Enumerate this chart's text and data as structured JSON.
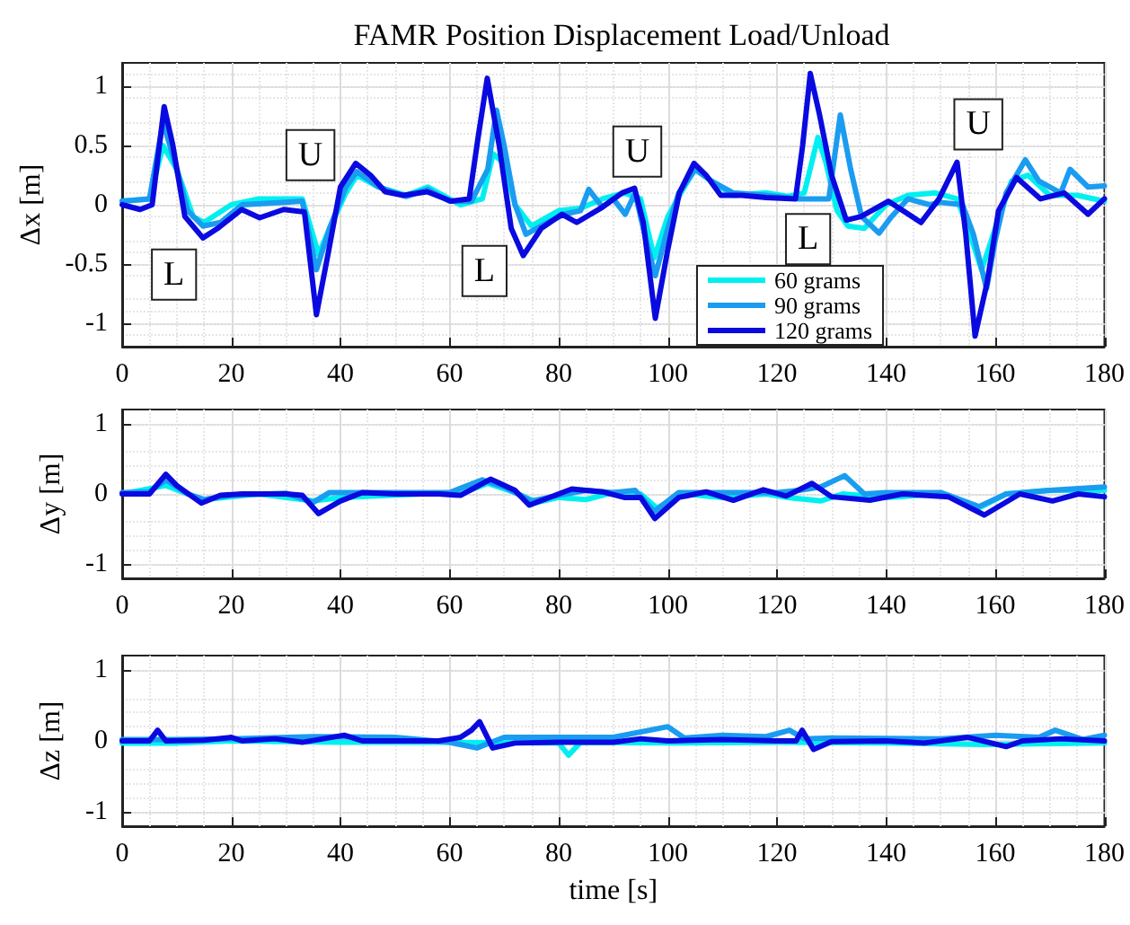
{
  "chart_data": [
    {
      "type": "line",
      "title": "FAMR Position Displacement Load/Unload",
      "ylabel": "Δx [m]",
      "xlim": [
        0,
        180
      ],
      "xticks": [
        0,
        20,
        40,
        60,
        80,
        100,
        120,
        140,
        160,
        180
      ],
      "ylim": [
        -1.2,
        1.2
      ],
      "yticks": [
        -1,
        -0.5,
        0,
        0.5,
        1
      ],
      "grid": true,
      "legend": "bottom right",
      "annotations": [
        {
          "text": "L",
          "x": 9.5,
          "y": -0.59
        },
        {
          "text": "U",
          "x": 34.5,
          "y": 0.42
        },
        {
          "text": "L",
          "x": 66.4,
          "y": -0.56
        },
        {
          "text": "U",
          "x": 94.4,
          "y": 0.45
        },
        {
          "text": "L",
          "x": 125.7,
          "y": -0.29
        },
        {
          "text": "U",
          "x": 156.9,
          "y": 0.68
        }
      ],
      "series": [
        {
          "name": "60 grams",
          "color": "#00f0f0",
          "x": [
            0,
            5,
            7.5,
            10,
            13,
            15,
            20,
            25,
            33,
            36,
            38,
            41,
            43,
            47,
            52,
            56,
            62,
            66,
            68,
            70,
            72,
            75,
            80,
            84,
            88,
            92,
            95,
            97.5,
            100,
            103,
            105,
            108,
            112,
            118,
            122,
            125,
            127.5,
            129,
            131,
            133,
            136,
            140,
            144,
            149,
            153,
            155,
            157.5,
            160,
            163,
            166,
            170,
            175,
            180
          ],
          "values": [
            0.03,
            0.05,
            0.5,
            0.3,
            -0.1,
            -0.15,
            0,
            0.05,
            0.05,
            -0.42,
            -0.2,
            0.1,
            0.25,
            0.15,
            0.08,
            0.15,
            0,
            0.05,
            0.43,
            0.35,
            0,
            -0.18,
            -0.05,
            -0.03,
            0.05,
            0.1,
            0.05,
            -0.45,
            -0.1,
            0.15,
            0.3,
            0.2,
            0.08,
            0.1,
            0.07,
            0.1,
            0.57,
            0.35,
            -0.05,
            -0.18,
            -0.2,
            0,
            0.08,
            0.1,
            0.05,
            -0.2,
            -0.55,
            -0.2,
            0.2,
            0.25,
            0.08,
            0.08,
            0.03
          ]
        },
        {
          "name": "90 grams",
          "color": "#1a9cf0",
          "x": [
            0,
            5,
            7.5,
            10,
            12,
            14.8,
            18,
            22,
            30,
            33,
            35.6,
            38,
            41,
            43,
            47,
            52,
            56,
            60,
            64,
            67,
            68.6,
            70,
            72,
            74,
            78,
            81,
            84,
            85.5,
            88,
            90,
            92.2,
            94,
            96,
            97.7,
            100,
            102,
            105,
            108,
            112,
            118,
            124,
            127,
            129.5,
            131.6,
            133.5,
            135.5,
            138.7,
            141,
            144,
            148,
            150,
            154,
            156,
            158.4,
            160,
            162,
            165.5,
            168,
            172,
            173.7,
            177,
            180
          ],
          "values": [
            0.03,
            0.05,
            0.7,
            0.3,
            -0.05,
            -0.18,
            -0.15,
            0,
            0.02,
            0.03,
            -0.55,
            -0.2,
            0.15,
            0.28,
            0.15,
            0.07,
            0.13,
            0.03,
            0.03,
            0.3,
            0.8,
            0.5,
            0,
            -0.25,
            -0.15,
            -0.08,
            -0.05,
            0.13,
            -0.02,
            0.05,
            -0.08,
            0.1,
            -0.3,
            -0.6,
            -0.2,
            0.1,
            0.3,
            0.2,
            0.1,
            0.08,
            0.05,
            0.05,
            0.05,
            0.76,
            0.3,
            -0.1,
            -0.24,
            -0.1,
            0.05,
            0,
            0.02,
            0,
            -0.25,
            -0.71,
            -0.3,
            0.1,
            0.38,
            0.2,
            0.1,
            0.3,
            0.15,
            0.16
          ]
        },
        {
          "name": "120 grams",
          "color": "#0a0ae0",
          "x": [
            0,
            3.3,
            5.5,
            7.7,
            9.3,
            11.5,
            14.8,
            17.5,
            21.9,
            25.2,
            29.6,
            33.4,
            35.6,
            37.8,
            40,
            42.8,
            45.5,
            48.2,
            51.5,
            55.9,
            60.3,
            63.6,
            65.2,
            66.9,
            69.1,
            71.3,
            73.5,
            76.8,
            80.6,
            83.3,
            87.7,
            91.6,
            93.9,
            95.5,
            97.7,
            99.9,
            102.1,
            104.8,
            107,
            109.7,
            113.6,
            118,
            123.4,
            124.7,
            126.1,
            127.8,
            130,
            132.7,
            135.4,
            140.4,
            146.4,
            149.7,
            153,
            154.6,
            156.3,
            158.5,
            160.6,
            163.9,
            168.3,
            172.6,
            177,
            180
          ],
          "values": [
            0,
            -0.04,
            0,
            0.83,
            0.5,
            -0.1,
            -0.28,
            -0.2,
            -0.04,
            -0.11,
            -0.04,
            -0.06,
            -0.93,
            -0.4,
            0.15,
            0.35,
            0.25,
            0.11,
            0.08,
            0.11,
            0.03,
            0.05,
            0.56,
            1.07,
            0.5,
            -0.2,
            -0.43,
            -0.2,
            -0.08,
            -0.15,
            -0.03,
            0.1,
            0.14,
            -0.15,
            -0.96,
            -0.4,
            0.1,
            0.35,
            0.25,
            0.08,
            0.08,
            0.06,
            0.05,
            0.5,
            1.11,
            0.76,
            0.25,
            -0.13,
            -0.1,
            0.03,
            -0.15,
            0.05,
            0.36,
            -0.25,
            -1.11,
            -0.66,
            -0.05,
            0.23,
            0.05,
            0.1,
            -0.08,
            0.05
          ]
        }
      ]
    },
    {
      "type": "line",
      "ylabel": "Δy [m]",
      "xlim": [
        0,
        180
      ],
      "xticks": [
        0,
        20,
        40,
        60,
        80,
        100,
        120,
        140,
        160,
        180
      ],
      "ylim": [
        -1.2,
        1.2
      ],
      "yticks": [
        -1,
        0,
        1
      ],
      "grid": true,
      "series": [
        {
          "color": "#00f0f0",
          "x": [
            0,
            8,
            12,
            15,
            25,
            35,
            40,
            55,
            62,
            67,
            72,
            76,
            80,
            85,
            90,
            95,
            98,
            103,
            110,
            118,
            122,
            128,
            132,
            140,
            150,
            157,
            162,
            170,
            180
          ],
          "values": [
            0,
            0.12,
            0,
            -0.08,
            0,
            -0.1,
            -0.05,
            0,
            0,
            0.15,
            0.02,
            -0.12,
            -0.05,
            -0.08,
            0.02,
            0,
            -0.2,
            0,
            -0.05,
            0,
            -0.05,
            -0.1,
            0,
            -0.05,
            0,
            -0.2,
            0,
            0.05,
            0.05
          ]
        },
        {
          "color": "#1a9cf0",
          "x": [
            0,
            5,
            8,
            12,
            15,
            20,
            30,
            35,
            38,
            45,
            55,
            60,
            66,
            70,
            75,
            80,
            85,
            90,
            94,
            97.5,
            102,
            110,
            120,
            124,
            128,
            132.4,
            136,
            140,
            150,
            157,
            162,
            170,
            180
          ],
          "values": [
            0.02,
            0.03,
            0.2,
            0,
            -0.08,
            -0.02,
            0.01,
            -0.12,
            0.02,
            0.02,
            0.02,
            0.02,
            0.2,
            0.1,
            -0.1,
            -0.02,
            0.05,
            0.02,
            0.05,
            -0.25,
            0.02,
            0.02,
            0.02,
            0.05,
            0.1,
            0.26,
            0,
            0.02,
            0.02,
            -0.18,
            0,
            0.05,
            0.1
          ]
        },
        {
          "color": "#0a0ae0",
          "x": [
            0,
            5,
            8,
            10,
            14.5,
            18,
            22,
            30,
            33,
            36,
            40,
            44,
            50,
            58,
            62,
            67.5,
            72,
            74.6,
            80,
            82.4,
            88,
            92,
            95,
            97.6,
            102,
            107,
            112,
            117.5,
            121.7,
            126.4,
            130,
            137,
            143,
            151.4,
            158,
            164.5,
            170.5,
            175.2,
            180
          ],
          "values": [
            0,
            0,
            0.28,
            0.12,
            -0.13,
            -0.02,
            0,
            0,
            -0.02,
            -0.28,
            -0.1,
            0.02,
            0,
            0,
            -0.02,
            0.21,
            0.05,
            -0.16,
            0,
            0.07,
            0.03,
            -0.05,
            -0.05,
            -0.35,
            -0.05,
            0.03,
            -0.09,
            0.06,
            -0.03,
            0.15,
            -0.04,
            -0.09,
            0,
            -0.04,
            -0.3,
            0,
            -0.1,
            0,
            -0.04
          ]
        }
      ]
    },
    {
      "type": "line",
      "ylabel": "Δz [m]",
      "xlabel": "time [s]",
      "xlim": [
        0,
        180
      ],
      "xticks": [
        0,
        20,
        40,
        60,
        80,
        100,
        120,
        140,
        160,
        180
      ],
      "ylim": [
        -1.2,
        1.2
      ],
      "yticks": [
        -1,
        0,
        1
      ],
      "grid": true,
      "series": [
        {
          "color": "#00f0f0",
          "x": [
            0,
            10,
            20,
            40,
            60,
            80,
            81.8,
            84,
            100,
            120,
            140,
            158,
            180
          ],
          "values": [
            -0.03,
            -0.03,
            0,
            -0.02,
            -0.02,
            -0.03,
            -0.2,
            -0.02,
            -0.03,
            -0.02,
            -0.03,
            -0.05,
            -0.03
          ]
        },
        {
          "color": "#1a9cf0",
          "x": [
            0,
            10,
            20,
            35,
            50,
            60,
            65,
            70,
            90,
            100,
            103,
            110,
            118,
            122.3,
            125,
            130,
            150,
            160,
            168,
            171,
            176,
            180
          ],
          "values": [
            0.02,
            0.02,
            0.03,
            0.06,
            0.05,
            -0.02,
            -0.1,
            0.05,
            0.05,
            0.2,
            0.04,
            0.08,
            0.06,
            0.15,
            0.03,
            0.04,
            0.03,
            0.08,
            0.05,
            0.15,
            0.02,
            0.08
          ]
        },
        {
          "color": "#0a0ae0",
          "x": [
            0,
            5,
            6.5,
            8,
            15,
            20,
            22,
            28,
            33,
            40.7,
            44,
            50,
            58,
            62,
            64,
            65.5,
            67.9,
            72,
            80,
            90,
            95,
            100,
            110,
            120,
            123.5,
            124.6,
            126.7,
            130,
            140,
            147,
            155,
            162,
            165,
            172,
            180
          ],
          "values": [
            0,
            0,
            0.15,
            0,
            0.01,
            0.05,
            0,
            0.03,
            -0.02,
            0.08,
            0,
            0,
            0,
            0.05,
            0.15,
            0.27,
            -0.1,
            -0.03,
            -0.02,
            -0.02,
            0.03,
            0,
            0.02,
            0,
            0,
            0.15,
            -0.12,
            -0.01,
            0,
            -0.03,
            0.05,
            -0.08,
            0,
            0.03,
            0
          ]
        }
      ]
    }
  ]
}
